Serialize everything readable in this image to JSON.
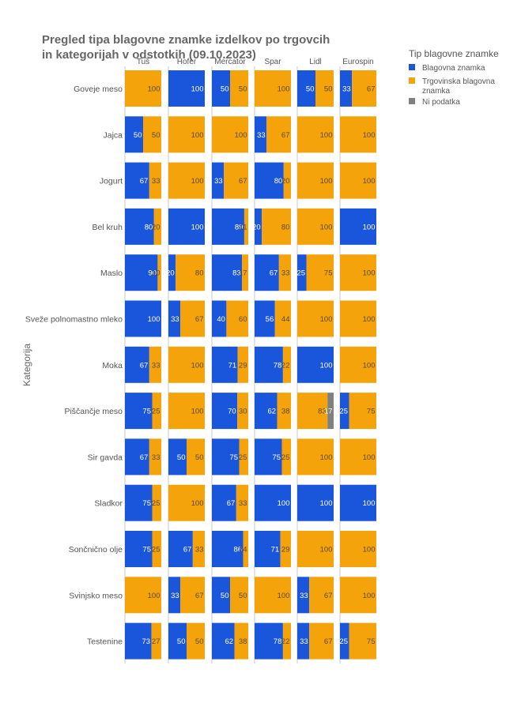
{
  "chart_data": {
    "type": "bar",
    "orientation": "horizontal",
    "stacked": true,
    "title": "Pregled tipa blagovne znamke izdelkov po trgovcih in kategorijah v odstotkih (09.10.2023)",
    "title_lines": [
      "Pregled tipa blagovne znamke izdelkov po trgovcih",
      "in kategorijah v odstotkih (09.10.2023)"
    ],
    "ylabel": "Kategorija",
    "xlim": [
      0,
      100
    ],
    "grid": false,
    "legend": {
      "title": "Tip blagovne znamke",
      "placement": "top-right",
      "entries": [
        {
          "label": "Blagovna znamka"
        },
        {
          "label_lines": [
            "Trgovinska blagovna",
            "znamka"
          ]
        },
        {
          "label": "Ni podatka"
        }
      ]
    },
    "colors": {
      "brand": "#1a56db",
      "store": "#f5a30b",
      "na": "#808080"
    },
    "retailers": [
      "Tuš",
      "Hofer",
      "Mercator",
      "Spar",
      "Lidl",
      "Eurospin"
    ],
    "categories": [
      "Goveje meso",
      "Jajca",
      "Jogurt",
      "Bel kruh",
      "Maslo",
      "Sveže polnomastno mleko",
      "Moka",
      "Piščančje meso",
      "Sir gavda",
      "Sladkor",
      "Sončnično olje",
      "Svinjsko meso",
      "Testenine"
    ],
    "series": [
      {
        "name": "Blagovna znamka",
        "key": "brand",
        "values": [
          [
            0,
            100,
            50,
            0,
            50,
            33
          ],
          [
            50,
            0,
            0,
            33,
            0,
            0
          ],
          [
            67,
            0,
            33,
            80,
            0,
            0
          ],
          [
            80,
            100,
            89,
            20,
            0,
            100
          ],
          [
            90,
            20,
            83,
            67,
            25,
            0
          ],
          [
            100,
            33,
            40,
            56,
            0,
            0
          ],
          [
            67,
            0,
            71,
            78,
            100,
            0
          ],
          [
            75,
            0,
            70,
            62,
            0,
            25
          ],
          [
            67,
            50,
            75,
            75,
            0,
            0
          ],
          [
            75,
            0,
            67,
            100,
            100,
            100
          ],
          [
            75,
            67,
            86,
            71,
            0,
            0
          ],
          [
            0,
            33,
            50,
            0,
            33,
            0
          ],
          [
            73,
            50,
            62,
            78,
            33,
            25
          ]
        ]
      },
      {
        "name": "Trgovinska blagovna znamka",
        "key": "store",
        "values": [
          [
            100,
            0,
            50,
            100,
            50,
            67
          ],
          [
            50,
            100,
            100,
            67,
            100,
            100
          ],
          [
            33,
            100,
            67,
            20,
            100,
            100
          ],
          [
            20,
            0,
            11,
            80,
            100,
            0
          ],
          [
            10,
            80,
            17,
            33,
            75,
            100
          ],
          [
            0,
            67,
            60,
            44,
            100,
            100
          ],
          [
            33,
            100,
            29,
            22,
            0,
            100
          ],
          [
            25,
            100,
            30,
            38,
            83,
            75
          ],
          [
            33,
            50,
            25,
            25,
            100,
            100
          ],
          [
            25,
            100,
            33,
            0,
            0,
            0
          ],
          [
            25,
            33,
            14,
            29,
            100,
            100
          ],
          [
            100,
            67,
            50,
            100,
            67,
            100
          ],
          [
            27,
            50,
            38,
            22,
            67,
            75
          ]
        ]
      },
      {
        "name": "Ni podatka",
        "key": "na",
        "values": [
          [
            0,
            0,
            0,
            0,
            0,
            0
          ],
          [
            0,
            0,
            0,
            0,
            0,
            0
          ],
          [
            0,
            0,
            0,
            0,
            0,
            0
          ],
          [
            0,
            0,
            0,
            0,
            0,
            0
          ],
          [
            0,
            0,
            0,
            0,
            0,
            0
          ],
          [
            0,
            0,
            0,
            0,
            0,
            0
          ],
          [
            0,
            0,
            0,
            0,
            0,
            0
          ],
          [
            0,
            0,
            0,
            0,
            17,
            0
          ],
          [
            0,
            0,
            0,
            0,
            0,
            0
          ],
          [
            0,
            0,
            0,
            0,
            0,
            0
          ],
          [
            0,
            0,
            0,
            0,
            0,
            0
          ],
          [
            0,
            0,
            0,
            0,
            0,
            0
          ],
          [
            0,
            0,
            0,
            0,
            0,
            0
          ]
        ]
      }
    ],
    "data_labels": [
      [
        [
          "",
          "100"
        ],
        [
          "100",
          ""
        ],
        [
          "50",
          "50"
        ],
        [
          "",
          "100"
        ],
        [
          "50",
          "50"
        ],
        [
          "33",
          "67"
        ]
      ],
      [
        [
          "50",
          "50"
        ],
        [
          "",
          "100"
        ],
        [
          "",
          "100"
        ],
        [
          "33",
          "67"
        ],
        [
          "",
          "100"
        ],
        [
          "",
          "100"
        ]
      ],
      [
        [
          "67",
          "33"
        ],
        [
          "",
          "100"
        ],
        [
          "33",
          "67"
        ],
        [
          "80",
          "20"
        ],
        [
          "",
          "100"
        ],
        [
          "",
          "100"
        ]
      ],
      [
        [
          "80",
          "20"
        ],
        [
          "100",
          ""
        ],
        [
          "89",
          "11"
        ],
        [
          "20",
          "80"
        ],
        [
          "",
          "100"
        ],
        [
          "100",
          ""
        ]
      ],
      [
        [
          "90",
          "10"
        ],
        [
          "20",
          "80"
        ],
        [
          "83",
          "17"
        ],
        [
          "67",
          "33"
        ],
        [
          "25",
          "75"
        ],
        [
          "",
          "100"
        ]
      ],
      [
        [
          "100",
          ""
        ],
        [
          "33",
          "67"
        ],
        [
          "40",
          "60"
        ],
        [
          "56",
          "44"
        ],
        [
          "",
          "100"
        ],
        [
          "",
          "100"
        ]
      ],
      [
        [
          "67",
          "33"
        ],
        [
          "",
          "100"
        ],
        [
          "71",
          "29"
        ],
        [
          "78",
          "22"
        ],
        [
          "100",
          ""
        ],
        [
          "",
          "100"
        ]
      ],
      [
        [
          "75",
          "25"
        ],
        [
          "",
          "100"
        ],
        [
          "70",
          "30"
        ],
        [
          "62",
          "38"
        ],
        [
          "",
          "83",
          "17"
        ],
        [
          "25",
          "75"
        ]
      ],
      [
        [
          "67",
          "33"
        ],
        [
          "50",
          "50"
        ],
        [
          "75",
          "25"
        ],
        [
          "75",
          "25"
        ],
        [
          "",
          "100"
        ],
        [
          "",
          "100"
        ]
      ],
      [
        [
          "75",
          "25"
        ],
        [
          "",
          "100"
        ],
        [
          "67",
          "33"
        ],
        [
          "100",
          ""
        ],
        [
          "100",
          ""
        ],
        [
          "100",
          ""
        ]
      ],
      [
        [
          "75",
          "25"
        ],
        [
          "67",
          "33"
        ],
        [
          "86",
          "14"
        ],
        [
          "71",
          "29"
        ],
        [
          "",
          "100"
        ],
        [
          "",
          "100"
        ]
      ],
      [
        [
          "",
          "100"
        ],
        [
          "33",
          "67"
        ],
        [
          "50",
          "50"
        ],
        [
          "",
          "100"
        ],
        [
          "33",
          "67"
        ],
        [
          "",
          "100"
        ]
      ],
      [
        [
          "73",
          "27"
        ],
        [
          "50",
          "50"
        ],
        [
          "62",
          "38"
        ],
        [
          "78",
          "22"
        ],
        [
          "33",
          "67"
        ],
        [
          "25",
          "75"
        ]
      ]
    ]
  }
}
